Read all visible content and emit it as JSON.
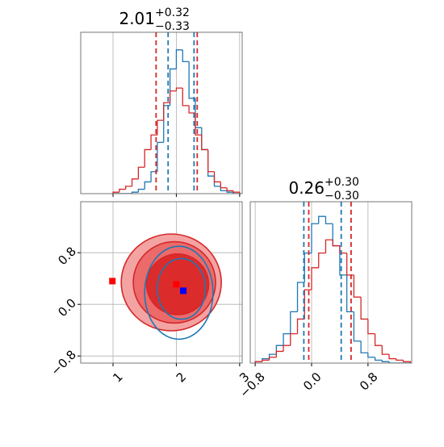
{
  "chart_data": [
    {
      "type": "histogram",
      "title": "2.01",
      "title_upper": "+0.32",
      "title_lower": "−0.33",
      "bins": [
        1.0,
        1.1,
        1.2,
        1.3,
        1.4,
        1.5,
        1.6,
        1.7,
        1.8,
        1.9,
        2.0,
        2.1,
        2.2,
        2.3,
        2.4,
        2.5,
        2.6,
        2.7,
        2.8,
        2.9,
        3.0
      ],
      "series": [
        {
          "color": "#1f77b4",
          "values": [
            0,
            0,
            0,
            0.01,
            0.03,
            0.08,
            0.15,
            0.35,
            0.6,
            0.85,
            0.98,
            0.9,
            0.65,
            0.45,
            0.3,
            0.12,
            0.05,
            0.02,
            0.01,
            0
          ]
        },
        {
          "color": "#d62728",
          "values": [
            0.01,
            0.03,
            0.05,
            0.1,
            0.18,
            0.3,
            0.4,
            0.5,
            0.62,
            0.7,
            0.72,
            0.6,
            0.55,
            0.4,
            0.3,
            0.15,
            0.08,
            0.04,
            0.02,
            0.01
          ]
        }
      ],
      "quantile_lines": [
        {
          "color": "#d62728",
          "values": [
            1.68,
            2.33
          ]
        },
        {
          "color": "#1f77b4",
          "values": [
            1.87,
            2.28
          ]
        }
      ],
      "xlim": [
        0.49,
        3.04
      ],
      "ylim": [
        0,
        1.1
      ],
      "xticks": [
        1,
        2,
        3
      ],
      "grid": true
    },
    {
      "type": "contour",
      "contours": [
        {
          "color": "#d62728",
          "levels": [
            {
              "x": 1.92,
              "y": 0.34,
              "rx": 0.79,
              "ry": 0.75,
              "fill": "#f4a3a3"
            },
            {
              "x": 1.97,
              "y": 0.34,
              "rx": 0.65,
              "ry": 0.63,
              "fill": "#ec6a6a"
            },
            {
              "x": 2.02,
              "y": 0.31,
              "rx": 0.49,
              "ry": 0.47,
              "fill": "#dc2b2b"
            }
          ]
        },
        {
          "color": "#1f77b4",
          "levels": [
            {
              "x": 2.04,
              "y": 0.18,
              "rx": 0.54,
              "ry": 0.72
            },
            {
              "x": 2.08,
              "y": 0.24,
              "rx": 0.38,
              "ry": 0.47
            }
          ]
        }
      ],
      "markers": [
        {
          "x": 0.99,
          "y": 0.36,
          "color": "#ff0000"
        },
        {
          "x": 2.0,
          "y": 0.31,
          "color": "#ff0000"
        },
        {
          "x": 2.11,
          "y": 0.21,
          "color": "#0000ff"
        }
      ],
      "xlim": [
        0.49,
        3.04
      ],
      "ylim": [
        -0.91,
        1.59
      ],
      "xticks": [
        1,
        2,
        3
      ],
      "yticks": [
        {
          "value": -0.8,
          "label": "−0.8"
        },
        {
          "value": 0.0,
          "label": "0.0"
        },
        {
          "value": 0.8,
          "label": "0.8"
        }
      ],
      "grid": true
    },
    {
      "type": "histogram",
      "title": "0.26",
      "title_upper": "+0.30",
      "title_lower": "−0.30",
      "bins": [
        -0.8,
        -0.7,
        -0.6,
        -0.5,
        -0.4,
        -0.3,
        -0.2,
        -0.1,
        0.0,
        0.1,
        0.2,
        0.3,
        0.4,
        0.5,
        0.6,
        0.7,
        0.8,
        0.9,
        1.0,
        1.1,
        1.2,
        1.3,
        1.4
      ],
      "series": [
        {
          "color": "#1f77b4",
          "values": [
            0.01,
            0.03,
            0.06,
            0.12,
            0.2,
            0.35,
            0.55,
            0.75,
            0.95,
            1.0,
            0.95,
            0.8,
            0.6,
            0.35,
            0.15,
            0.07,
            0.04,
            0.02,
            0.01,
            0,
            0,
            0
          ]
        },
        {
          "color": "#d62728",
          "values": [
            0.01,
            0.02,
            0.04,
            0.08,
            0.12,
            0.2,
            0.3,
            0.5,
            0.65,
            0.75,
            0.84,
            0.8,
            0.75,
            0.6,
            0.45,
            0.3,
            0.2,
            0.12,
            0.06,
            0.03,
            0.02,
            0.01
          ]
        }
      ],
      "quantile_lines": [
        {
          "color": "#d62728",
          "values": [
            -0.04,
            0.56
          ]
        },
        {
          "color": "#1f77b4",
          "values": [
            -0.11,
            0.42
          ]
        }
      ],
      "xlim": [
        -0.87,
        1.42
      ],
      "ylim": [
        0,
        1.1
      ],
      "xticks": [
        {
          "value": -0.8,
          "label": "−0.8"
        },
        {
          "value": 0.0,
          "label": "0.0"
        },
        {
          "value": 0.8,
          "label": "0.8"
        }
      ],
      "grid": true
    }
  ]
}
